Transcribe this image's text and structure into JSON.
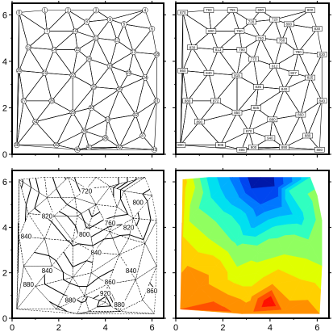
{
  "figure": {
    "panels": [
      {
        "id": "node-numbers",
        "type": "triangulation-node-numbers"
      },
      {
        "id": "data-values",
        "type": "triangulation-data-values"
      },
      {
        "id": "contours",
        "type": "contour-lines"
      },
      {
        "id": "filled",
        "type": "filled-contours"
      }
    ]
  },
  "chart_data": {
    "type": "triangulation-contour",
    "xlim": [
      0,
      6.5
    ],
    "ylim": [
      0,
      6.5
    ],
    "x_ticks": [
      0,
      2,
      4,
      6
    ],
    "y_ticks": [
      0,
      2,
      4,
      6
    ],
    "tick_labels": {
      "x": [
        "0",
        "2",
        "4",
        "6"
      ],
      "y": [
        "0",
        "2",
        "4",
        "6"
      ]
    },
    "points": [
      {
        "n": 0,
        "x": 0.3,
        "y": 6.1,
        "z": 870
      },
      {
        "n": 1,
        "x": 1.4,
        "y": 6.2,
        "z": 793
      },
      {
        "n": 2,
        "x": 2.4,
        "y": 6.2,
        "z": 755
      },
      {
        "n": 3,
        "x": 3.6,
        "y": 6.2,
        "z": 690
      },
      {
        "n": 4,
        "x": 5.7,
        "y": 6.2,
        "z": 800
      },
      {
        "n": 5,
        "x": 4.8,
        "y": 5.6,
        "z": 800
      },
      {
        "n": 6,
        "x": 6.0,
        "y": 5.4,
        "z": 830
      },
      {
        "n": 7,
        "x": 1.5,
        "y": 5.3,
        "z": 800
      },
      {
        "n": 8,
        "x": 3.2,
        "y": 5.7,
        "z": 720
      },
      {
        "n": 9,
        "x": 4.2,
        "y": 5.8,
        "z": 720
      },
      {
        "n": 10,
        "x": 2.7,
        "y": 5.3,
        "z": 760
      },
      {
        "n": 11,
        "x": 3.6,
        "y": 5.0,
        "z": 740
      },
      {
        "n": 12,
        "x": 4.5,
        "y": 4.9,
        "z": 760
      },
      {
        "n": 13,
        "x": 0.7,
        "y": 4.6,
        "z": 830
      },
      {
        "n": 14,
        "x": 1.8,
        "y": 4.5,
        "z": 813
      },
      {
        "n": 15,
        "x": 2.8,
        "y": 4.5,
        "z": 790
      },
      {
        "n": 16,
        "x": 3.3,
        "y": 4.1,
        "z": 773
      },
      {
        "n": 17,
        "x": 5.2,
        "y": 4.4,
        "z": 790
      },
      {
        "n": 18,
        "x": 6.2,
        "y": 4.3,
        "z": 830
      },
      {
        "n": 19,
        "x": 4.2,
        "y": 3.8,
        "z": 812
      },
      {
        "n": 20,
        "x": 0.3,
        "y": 3.6,
        "z": 860
      },
      {
        "n": 21,
        "x": 1.4,
        "y": 3.5,
        "z": 840
      },
      {
        "n": 22,
        "x": 2.6,
        "y": 3.4,
        "z": 815
      },
      {
        "n": 23,
        "x": 5.0,
        "y": 3.5,
        "z": 827
      },
      {
        "n": 24,
        "x": 5.7,
        "y": 3.3,
        "z": 825
      },
      {
        "n": 25,
        "x": 3.5,
        "y": 2.9,
        "z": 835
      },
      {
        "n": 26,
        "x": 4.6,
        "y": 2.8,
        "z": 840
      },
      {
        "n": 27,
        "x": 0.5,
        "y": 2.3,
        "z": 880
      },
      {
        "n": 28,
        "x": 1.7,
        "y": 2.3,
        "z": 872
      },
      {
        "n": 29,
        "x": 2.6,
        "y": 1.8,
        "z": 850
      },
      {
        "n": 30,
        "x": 3.4,
        "y": 2.0,
        "z": 845
      },
      {
        "n": 31,
        "x": 6.2,
        "y": 2.3,
        "z": 840
      },
      {
        "n": 32,
        "x": 5.3,
        "y": 1.7,
        "z": 860
      },
      {
        "n": 33,
        "x": 4.1,
        "y": 1.5,
        "z": 880
      },
      {
        "n": 34,
        "x": 1.0,
        "y": 1.4,
        "z": 890
      },
      {
        "n": 35,
        "x": 3.1,
        "y": 1.0,
        "z": 870
      },
      {
        "n": 36,
        "x": 4.0,
        "y": 0.7,
        "z": 940
      },
      {
        "n": 37,
        "x": 5.6,
        "y": 0.8,
        "z": 880
      },
      {
        "n": 38,
        "x": 0.2,
        "y": 0.4,
        "z": 900
      },
      {
        "n": 39,
        "x": 1.9,
        "y": 0.4,
        "z": 905
      },
      {
        "n": 40,
        "x": 2.8,
        "y": 0.2,
        "z": 895
      },
      {
        "n": 41,
        "x": 3.3,
        "y": 0.3,
        "z": 900
      },
      {
        "n": 42,
        "x": 4.6,
        "y": 0.3,
        "z": 890
      },
      {
        "n": 43,
        "x": 6.1,
        "y": 0.2,
        "z": 880
      }
    ],
    "contour_levels": [
      720,
      740,
      760,
      780,
      800,
      820,
      840,
      860,
      880,
      900,
      920,
      940
    ],
    "labeled_contours": [
      {
        "label": "720",
        "x": 3.2,
        "y": 5.6
      },
      {
        "label": "760",
        "x": 4.2,
        "y": 4.2
      },
      {
        "label": "800",
        "x": 3.1,
        "y": 3.7
      },
      {
        "label": "820",
        "x": 1.5,
        "y": 4.5
      },
      {
        "label": "800",
        "x": 5.4,
        "y": 5.1
      },
      {
        "label": "820",
        "x": 5.0,
        "y": 4.0
      },
      {
        "label": "840",
        "x": 0.6,
        "y": 3.6
      },
      {
        "label": "840",
        "x": 3.6,
        "y": 2.9
      },
      {
        "label": "840",
        "x": 1.5,
        "y": 2.1
      },
      {
        "label": "840",
        "x": 5.1,
        "y": 2.1
      },
      {
        "label": "860",
        "x": 4.2,
        "y": 1.6
      },
      {
        "label": "880",
        "x": 0.7,
        "y": 1.5
      },
      {
        "label": "880",
        "x": 2.5,
        "y": 0.8
      },
      {
        "label": "880",
        "x": 4.6,
        "y": 0.6
      },
      {
        "label": "920",
        "x": 4.0,
        "y": 1.1
      },
      {
        "label": "860",
        "x": 6.0,
        "y": 1.2
      }
    ],
    "colormap": [
      "#0018a8",
      "#0046f0",
      "#0078ff",
      "#00b0ff",
      "#00e0f0",
      "#30ffc0",
      "#90ff60",
      "#e0ff00",
      "#ffd000",
      "#ff9000",
      "#ff5000",
      "#ff1000",
      "#d00000"
    ],
    "grid": false
  }
}
